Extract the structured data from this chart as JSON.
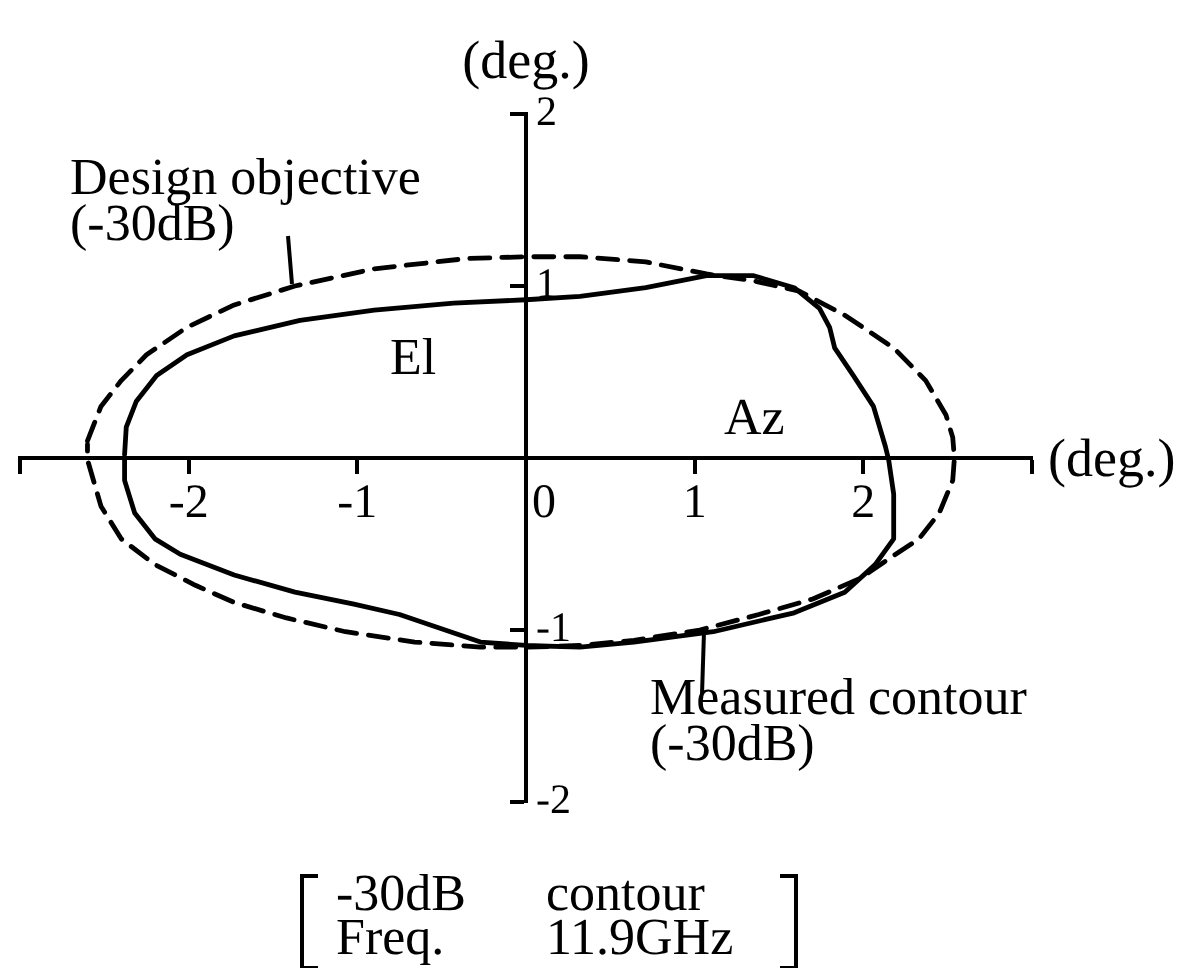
{
  "chart_data": {
    "type": "line",
    "xlabel": "(deg.)",
    "ylabel": "(deg.)",
    "xlim": [
      -3,
      3
    ],
    "xticks": [
      {
        "value": -3,
        "label": null
      },
      -2,
      -1,
      0,
      1,
      2,
      {
        "value": 3,
        "label": null
      }
    ],
    "ylim": [
      -2,
      2
    ],
    "yticks": [
      -2,
      -1,
      1,
      2
    ],
    "grid": false,
    "legend": false,
    "marker": "none",
    "annotations": [
      "El",
      "Az",
      "-30dB contour\nFreq. 11.9GHz"
    ],
    "series": [
      {
        "name": "Design objective (-30dB)",
        "color": "#000000",
        "line_style": "dashed",
        "x": [
          -2.6,
          -2.52,
          -2.4,
          -2.25,
          -2.01,
          -1.73,
          -1.37,
          -0.9,
          -0.35,
          0,
          0.32,
          0.71,
          1.07,
          1.35,
          1.62,
          1.89,
          2.18,
          2.37,
          2.49,
          2.53,
          2.54,
          2.53,
          2.45,
          2.33,
          2.16,
          1.98,
          1.7,
          1.38,
          1.03,
          0.64,
          0.32,
          0,
          -0.27,
          -0.66,
          -1.07,
          -1.42,
          -1.73,
          -1.96,
          -2.2,
          -2.4,
          -2.52,
          -2.6,
          -2.6
        ],
        "values": [
          0.1,
          0.3,
          0.45,
          0.6,
          0.76,
          0.89,
          1.0,
          1.1,
          1.16,
          1.17,
          1.17,
          1.14,
          1.07,
          1.03,
          0.97,
          0.83,
          0.64,
          0.45,
          0.25,
          0.12,
          0.0,
          -0.13,
          -0.32,
          -0.47,
          -0.58,
          -0.7,
          -0.82,
          -0.91,
          -1.0,
          -1.06,
          -1.09,
          -1.1,
          -1.1,
          -1.07,
          -1.01,
          -0.93,
          -0.84,
          -0.74,
          -0.62,
          -0.47,
          -0.28,
          -0.01,
          0.08
        ]
      },
      {
        "name": "Measured contour (-30dB)",
        "color": "#000000",
        "line_style": "solid",
        "x": [
          -2.38,
          -2.37,
          -2.31,
          -2.19,
          -2.01,
          -1.73,
          -1.34,
          -0.9,
          -0.43,
          0,
          0.32,
          0.71,
          1.07,
          1.35,
          1.59,
          1.74,
          1.8,
          1.83,
          1.94,
          2.06,
          2.13,
          2.15,
          2.18,
          2.18,
          2.07,
          1.89,
          1.59,
          1.11,
          0.64,
          0.32,
          0,
          -0.27,
          -0.51,
          -0.75,
          -1.02,
          -1.37,
          -1.73,
          -2.05,
          -2.2,
          -2.32,
          -2.38,
          -2.38
        ],
        "values": [
          0.02,
          0.18,
          0.33,
          0.48,
          0.6,
          0.71,
          0.8,
          0.86,
          0.9,
          0.92,
          0.94,
          0.99,
          1.06,
          1.06,
          0.99,
          0.87,
          0.76,
          0.64,
          0.48,
          0.3,
          0.07,
          -0.01,
          -0.21,
          -0.47,
          -0.62,
          -0.78,
          -0.9,
          -1.01,
          -1.07,
          -1.1,
          -1.09,
          -1.07,
          -0.99,
          -0.91,
          -0.85,
          -0.78,
          -0.68,
          -0.56,
          -0.47,
          -0.32,
          -0.13,
          0.0
        ]
      }
    ]
  }
}
